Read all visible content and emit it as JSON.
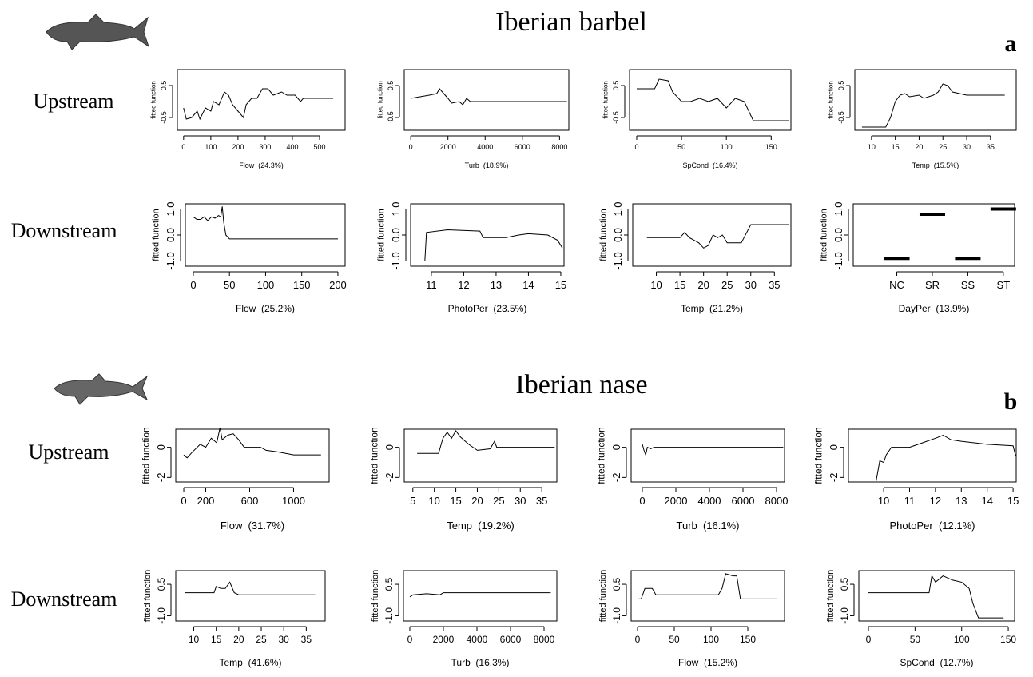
{
  "figure": {
    "panels": [
      {
        "title": "Iberian barbel",
        "label": "a",
        "rows": [
          "Upstream",
          "Downstream"
        ]
      },
      {
        "title": "Iberian nase",
        "label": "b",
        "rows": [
          "Upstream",
          "Downstream"
        ]
      }
    ]
  },
  "chart_data": [
    {
      "type": "line",
      "x_label": "Flow  (24.3%)",
      "y_label": "fitted function",
      "x": [
        0,
        10,
        30,
        50,
        60,
        80,
        100,
        110,
        130,
        150,
        165,
        180,
        200,
        220,
        230,
        250,
        270,
        290,
        310,
        330,
        360,
        380,
        410,
        430,
        440,
        550
      ],
      "values": [
        -0.2,
        -0.55,
        -0.5,
        -0.3,
        -0.55,
        -0.2,
        -0.3,
        0.0,
        -0.1,
        0.3,
        0.2,
        -0.1,
        -0.3,
        -0.5,
        -0.1,
        0.1,
        0.1,
        0.4,
        0.4,
        0.2,
        0.3,
        0.2,
        0.2,
        0.0,
        0.1,
        0.1
      ],
      "xlim": [
        -23,
        594
      ],
      "ylim": [
        -0.9,
        1.0
      ],
      "xticks": [
        0,
        100,
        200,
        300,
        400,
        500
      ],
      "yticks": [
        -0.5,
        0.5
      ]
    },
    {
      "type": "line",
      "x_label": "Turb  (18.9%)",
      "y_label": "fitted function",
      "x": [
        0,
        500,
        1000,
        1400,
        1550,
        1700,
        2000,
        2200,
        2600,
        2800,
        3000,
        3200,
        8400
      ],
      "values": [
        0.1,
        0.15,
        0.2,
        0.25,
        0.4,
        0.3,
        0.1,
        -0.05,
        0.0,
        -0.1,
        0.1,
        0.0,
        0.0
      ],
      "xlim": [
        -350,
        8500
      ],
      "ylim": [
        -0.9,
        1.0
      ],
      "xticks": [
        0,
        2000,
        4000,
        6000,
        8000
      ],
      "yticks": [
        -0.5,
        0.5
      ]
    },
    {
      "type": "line",
      "x_label": "SpCond  (16.4%)",
      "y_label": "fitted function",
      "x": [
        0,
        20,
        25,
        35,
        40,
        50,
        60,
        70,
        80,
        90,
        100,
        110,
        120,
        130,
        170
      ],
      "values": [
        0.4,
        0.4,
        0.7,
        0.65,
        0.3,
        0.0,
        0.0,
        0.1,
        0.0,
        0.1,
        -0.2,
        0.1,
        0.0,
        -0.6,
        -0.6
      ],
      "xlim": [
        -8,
        172
      ],
      "ylim": [
        -0.9,
        1.0
      ],
      "xticks": [
        0,
        50,
        100,
        150
      ],
      "yticks": [
        -0.5,
        0.5
      ]
    },
    {
      "type": "line",
      "x_label": "Temp  (15.5%)",
      "y_label": "fitted function",
      "x": [
        8,
        13,
        14,
        15,
        16,
        17,
        18,
        20,
        21,
        23,
        24,
        25,
        26,
        27,
        30,
        38
      ],
      "values": [
        -0.8,
        -0.8,
        -0.5,
        0.0,
        0.2,
        0.25,
        0.15,
        0.2,
        0.1,
        0.2,
        0.3,
        0.55,
        0.5,
        0.3,
        0.2,
        0.2
      ],
      "xlim": [
        6.5,
        40.4
      ],
      "ylim": [
        -0.9,
        1.0
      ],
      "xticks": [
        10,
        15,
        20,
        25,
        30,
        35
      ],
      "yticks": [
        -0.5,
        0.5
      ]
    },
    {
      "type": "line",
      "x_label": "Flow  (25.2%)",
      "y_label": "fitted function",
      "x": [
        0,
        5,
        10,
        15,
        20,
        25,
        30,
        35,
        38,
        40,
        42,
        45,
        50,
        60,
        200
      ],
      "values": [
        0.7,
        0.6,
        0.6,
        0.7,
        0.55,
        0.7,
        0.65,
        0.75,
        0.7,
        1.1,
        0.5,
        0.0,
        -0.15,
        -0.15,
        -0.15
      ],
      "xlim": [
        -11,
        210
      ],
      "ylim": [
        -1.2,
        1.2
      ],
      "xticks": [
        0,
        50,
        100,
        150,
        200
      ],
      "yticks": [
        {
          "value": -1,
          "label": "-1.0"
        },
        {
          "value": 0,
          "label": "0.0"
        },
        {
          "value": 1,
          "label": "1.0"
        }
      ]
    },
    {
      "type": "line",
      "x_label": "PhotoPer  (23.5%)",
      "y_label": "fitted function",
      "x": [
        10.5,
        10.8,
        10.85,
        11.5,
        12.5,
        12.6,
        13.3,
        13.7,
        14,
        14.6,
        14.9,
        15.05
      ],
      "values": [
        -1.0,
        -1.0,
        0.1,
        0.2,
        0.15,
        -0.1,
        -0.1,
        0.0,
        0.05,
        0.0,
        -0.2,
        -0.5
      ],
      "xlim": [
        10.36,
        15.1
      ],
      "ylim": [
        -1.2,
        1.2
      ],
      "xticks": [
        11,
        12,
        13,
        14,
        15
      ],
      "yticks": [
        {
          "value": -1,
          "label": "-1.0"
        },
        {
          "value": 0,
          "label": "0.0"
        },
        {
          "value": 1,
          "label": "1.0"
        }
      ]
    },
    {
      "type": "line",
      "x_label": "Temp  (21.2%)",
      "y_label": "fitted function",
      "x": [
        8,
        15,
        16,
        17,
        19,
        20,
        21,
        22,
        23,
        24,
        25,
        28,
        30,
        38
      ],
      "values": [
        -0.1,
        -0.1,
        0.1,
        -0.1,
        -0.3,
        -0.5,
        -0.4,
        0.0,
        -0.1,
        0.0,
        -0.3,
        -0.3,
        0.4,
        0.4
      ],
      "xlim": [
        5,
        38.5
      ],
      "ylim": [
        -1.2,
        1.2
      ],
      "xticks": [
        10,
        15,
        20,
        25,
        30,
        35
      ],
      "yticks": [
        {
          "value": -1,
          "label": "-1.0"
        },
        {
          "value": 0,
          "label": "0.0"
        },
        {
          "value": 1,
          "label": "1.0"
        }
      ]
    },
    {
      "type": "segment",
      "x_label": "DayPer  (13.9%)",
      "y_label": "fitted function",
      "categories": [
        "NC",
        "SR",
        "SS",
        "ST"
      ],
      "values": [
        -0.9,
        0.8,
        -0.9,
        1.0
      ],
      "ylim": [
        -1.2,
        1.2
      ],
      "yticks": [
        {
          "value": -1,
          "label": "-1.0"
        },
        {
          "value": 0,
          "label": "0.0"
        },
        {
          "value": 1,
          "label": "1.0"
        }
      ]
    },
    {
      "type": "line",
      "x_label": "Flow  (31.7%)",
      "y_label": "fitted function",
      "x": [
        0,
        30,
        80,
        150,
        200,
        250,
        300,
        330,
        350,
        400,
        450,
        500,
        550,
        700,
        750,
        850,
        1000,
        1250
      ],
      "values": [
        -0.5,
        -0.7,
        -0.3,
        0.2,
        0.0,
        0.6,
        0.3,
        1.3,
        0.5,
        0.8,
        0.9,
        0.5,
        0.0,
        0.0,
        -0.2,
        -0.3,
        -0.5,
        -0.5
      ],
      "xlim": [
        -73,
        1324
      ],
      "ylim": [
        -2.3,
        1.2
      ],
      "xticks": [
        0,
        200,
        600,
        1000
      ],
      "yticks": [
        -2,
        0
      ]
    },
    {
      "type": "line",
      "x_label": "Temp  (19.2%)",
      "y_label": "fitted function",
      "x": [
        6,
        11,
        12,
        13,
        14,
        15,
        16,
        18,
        20,
        23,
        24,
        24.5,
        38
      ],
      "values": [
        -0.4,
        -0.4,
        0.6,
        1.0,
        0.6,
        1.1,
        0.7,
        0.2,
        -0.2,
        -0.1,
        0.4,
        0.0,
        0.0
      ],
      "xlim": [
        3,
        38.5
      ],
      "ylim": [
        -2.3,
        1.2
      ],
      "xticks": [
        5,
        10,
        15,
        20,
        25,
        30,
        35
      ],
      "yticks": [
        -2,
        0
      ]
    },
    {
      "type": "line",
      "x_label": "Turb  (16.1%)",
      "y_label": "fitted function",
      "x": [
        0,
        100,
        200,
        300,
        500,
        700,
        1500,
        8400
      ],
      "values": [
        0.2,
        -0.2,
        -0.5,
        0.0,
        -0.1,
        0.0,
        0.0,
        0.0
      ],
      "xlim": [
        -667,
        8476
      ],
      "ylim": [
        -2.3,
        1.2
      ],
      "xticks": [
        0,
        2000,
        4000,
        6000,
        8000
      ],
      "yticks": [
        -2,
        0
      ]
    },
    {
      "type": "line",
      "x_label": "PhotoPer  (12.1%)",
      "y_label": "fitted function",
      "x": [
        9.7,
        9.85,
        10.0,
        10.1,
        10.3,
        11,
        11.5,
        12,
        12.3,
        12.6,
        13,
        14,
        15,
        15.1
      ],
      "values": [
        -2.3,
        -0.9,
        -1.0,
        -0.5,
        0.0,
        0.0,
        0.3,
        0.6,
        0.8,
        0.5,
        0.4,
        0.2,
        0.1,
        -0.6
      ],
      "xlim": [
        8.64,
        15.12
      ],
      "ylim": [
        -2.3,
        1.2
      ],
      "xticks": [
        10,
        11,
        12,
        13,
        14,
        15
      ],
      "yticks": [
        -2,
        0
      ]
    },
    {
      "type": "line",
      "x_label": "Temp  (41.6%)",
      "y_label": "fitted function",
      "x": [
        8,
        14.5,
        15,
        16,
        17,
        18,
        19,
        20,
        37
      ],
      "values": [
        0.1,
        0.1,
        0.4,
        0.3,
        0.3,
        0.6,
        0.1,
        0.0,
        0.0
      ],
      "xlim": [
        6,
        39.2
      ],
      "ylim": [
        -1.25,
        1.15
      ],
      "xticks": [
        10,
        15,
        20,
        25,
        30,
        35
      ],
      "yticks": [
        {
          "value": -1,
          "label": "-1.0"
        },
        0.5
      ]
    },
    {
      "type": "line",
      "x_label": "Turb  (16.3%)",
      "y_label": "fitted function",
      "x": [
        0,
        200,
        1000,
        1800,
        2000,
        8400
      ],
      "values": [
        -0.1,
        0.0,
        0.05,
        0.0,
        0.1,
        0.1
      ],
      "xlim": [
        -380,
        8762
      ],
      "ylim": [
        -1.25,
        1.15
      ],
      "xticks": [
        0,
        2000,
        4000,
        6000,
        8000
      ],
      "yticks": [
        {
          "value": -1,
          "label": "-1.0"
        },
        0.5
      ]
    },
    {
      "type": "line",
      "x_label": "Flow  (15.2%)",
      "y_label": "fitted function",
      "x": [
        0,
        5,
        10,
        20,
        25,
        110,
        115,
        120,
        130,
        135,
        140,
        190
      ],
      "values": [
        -0.2,
        -0.2,
        0.3,
        0.3,
        0.0,
        0.0,
        0.3,
        1.0,
        0.9,
        0.9,
        -0.2,
        -0.2
      ],
      "xlim": [
        -8.7,
        200
      ],
      "ylim": [
        -1.25,
        1.15
      ],
      "xticks": [
        0,
        50,
        100,
        150
      ],
      "yticks": [
        {
          "value": -1,
          "label": "-1.0"
        },
        0.5
      ]
    },
    {
      "type": "line",
      "x_label": "SpCond  (12.7%)",
      "y_label": "fitted function",
      "x": [
        0,
        65,
        68,
        72,
        80,
        90,
        100,
        108,
        112,
        118,
        145
      ],
      "values": [
        0.1,
        0.1,
        0.9,
        0.6,
        0.9,
        0.7,
        0.6,
        0.3,
        -0.4,
        -1.1,
        -1.1
      ],
      "xlim": [
        -10.3,
        156.8
      ],
      "ylim": [
        -1.25,
        1.15
      ],
      "xticks": [
        0,
        50,
        100,
        150
      ],
      "yticks": [
        {
          "value": -1,
          "label": "-1.0"
        },
        0.5
      ]
    }
  ]
}
